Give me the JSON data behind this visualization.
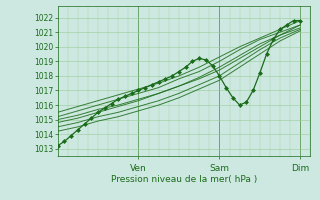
{
  "bg_color": "#cde8e0",
  "grid_color": "#99cc99",
  "line_color": "#1a6b1a",
  "xlabel": "Pression niveau de la mer( hPa )",
  "ylim": [
    1012.5,
    1022.8
  ],
  "yticks": [
    1013,
    1014,
    1015,
    1016,
    1017,
    1018,
    1019,
    1020,
    1021,
    1022
  ],
  "xlim": [
    0,
    75
  ],
  "xtick_positions": [
    24,
    48,
    72
  ],
  "xtick_labels": [
    "Ven",
    "Sam",
    "Dim"
  ],
  "main_line": {
    "x": [
      0,
      2,
      4,
      6,
      8,
      10,
      12,
      14,
      16,
      18,
      20,
      22,
      24,
      26,
      28,
      30,
      32,
      34,
      36,
      38,
      40,
      42,
      44,
      46,
      48,
      50,
      52,
      54,
      56,
      58,
      60,
      62,
      64,
      66,
      68,
      70,
      72
    ],
    "y": [
      1013.2,
      1013.5,
      1013.9,
      1014.3,
      1014.7,
      1015.1,
      1015.5,
      1015.8,
      1016.1,
      1016.4,
      1016.6,
      1016.8,
      1017.0,
      1017.2,
      1017.4,
      1017.6,
      1017.8,
      1018.0,
      1018.3,
      1018.6,
      1019.0,
      1019.2,
      1019.1,
      1018.7,
      1018.0,
      1017.2,
      1016.5,
      1016.0,
      1016.2,
      1017.0,
      1018.2,
      1019.5,
      1020.5,
      1021.2,
      1021.5,
      1021.8,
      1021.8
    ]
  },
  "ensemble_lines": [
    {
      "x": [
        0,
        6,
        12,
        18,
        24,
        30,
        36,
        42,
        48,
        54,
        60,
        66,
        72
      ],
      "y": [
        1015.2,
        1015.6,
        1016.0,
        1016.4,
        1016.8,
        1017.2,
        1017.8,
        1018.3,
        1019.0,
        1019.8,
        1020.5,
        1021.0,
        1021.5
      ]
    },
    {
      "x": [
        0,
        6,
        12,
        18,
        24,
        30,
        36,
        42,
        48,
        54,
        60,
        66,
        72
      ],
      "y": [
        1015.5,
        1015.9,
        1016.3,
        1016.7,
        1017.1,
        1017.5,
        1018.0,
        1018.6,
        1019.3,
        1020.0,
        1020.6,
        1021.2,
        1021.8
      ]
    },
    {
      "x": [
        0,
        6,
        12,
        18,
        24,
        30,
        36,
        42,
        48,
        54,
        60,
        66,
        72
      ],
      "y": [
        1014.8,
        1015.1,
        1015.5,
        1015.9,
        1016.3,
        1016.8,
        1017.3,
        1017.9,
        1018.6,
        1019.4,
        1020.2,
        1020.8,
        1021.3
      ]
    },
    {
      "x": [
        0,
        6,
        12,
        18,
        24,
        30,
        36,
        42,
        48,
        54,
        60,
        66,
        72
      ],
      "y": [
        1015.0,
        1015.3,
        1015.7,
        1016.0,
        1016.4,
        1016.8,
        1017.3,
        1017.8,
        1018.4,
        1019.2,
        1020.0,
        1020.8,
        1021.5
      ]
    },
    {
      "x": [
        0,
        6,
        12,
        18,
        24,
        30,
        36,
        42,
        48,
        54,
        60,
        66,
        72
      ],
      "y": [
        1014.5,
        1014.8,
        1015.2,
        1015.5,
        1015.9,
        1016.3,
        1016.8,
        1017.4,
        1018.0,
        1018.9,
        1019.8,
        1020.6,
        1021.2
      ]
    },
    {
      "x": [
        0,
        6,
        12,
        18,
        24,
        30,
        36,
        42,
        48,
        54,
        60,
        66,
        72
      ],
      "y": [
        1014.2,
        1014.5,
        1014.9,
        1015.2,
        1015.6,
        1016.0,
        1016.5,
        1017.1,
        1017.7,
        1018.6,
        1019.5,
        1020.4,
        1021.1
      ]
    }
  ]
}
